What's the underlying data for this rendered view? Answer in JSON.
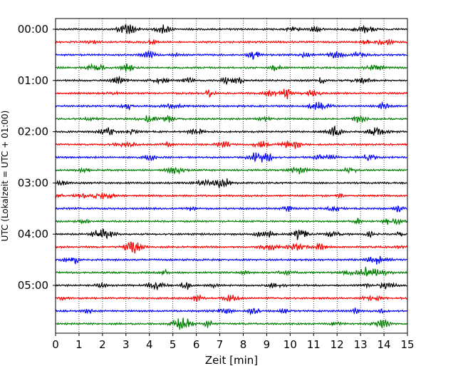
{
  "chart_data": {
    "type": "line",
    "title": "",
    "xlabel": "Zeit  [min]",
    "ylabel": "UTC (Lokalzeit = UTC + 01:00)",
    "xlim": [
      0,
      15
    ],
    "x_ticks": [
      "0",
      "1",
      "2",
      "3",
      "4",
      "5",
      "6",
      "7",
      "8",
      "9",
      "10",
      "11",
      "12",
      "13",
      "14",
      "15"
    ],
    "y_ticks": [
      "00:00",
      "01:00",
      "02:00",
      "03:00",
      "04:00",
      "05:00"
    ],
    "trace_interval_min": 15,
    "trace_count": 24,
    "trace_color_cycle": [
      "#000000",
      "#ff0000",
      "#0000ff",
      "#007f00"
    ],
    "x_grid": "dotted",
    "legend": "none"
  }
}
